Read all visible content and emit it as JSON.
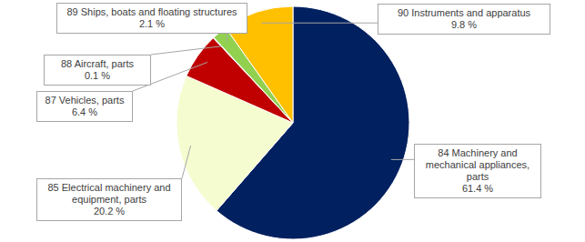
{
  "chart_data": {
    "type": "pie",
    "categories": [
      "84 Machinery and mechanical appliances, parts",
      "85 Electrical machinery and equipment, parts",
      "87 Vehicles, parts",
      "88 Aircraft, parts",
      "89 Ships, boats and floating structures",
      "90 Instruments and apparatus"
    ],
    "values": [
      61.4,
      20.2,
      6.4,
      0.1,
      2.1,
      9.8
    ],
    "value_labels": [
      "61.4 %",
      "20.2 %",
      "6.4 %",
      "0.1 %",
      "2.1 %",
      "9.8 %"
    ],
    "colors": [
      "#002060",
      "#f5fccf",
      "#c00000",
      "#7f7f7f",
      "#92d050",
      "#ffc000"
    ],
    "data_labels": true
  }
}
